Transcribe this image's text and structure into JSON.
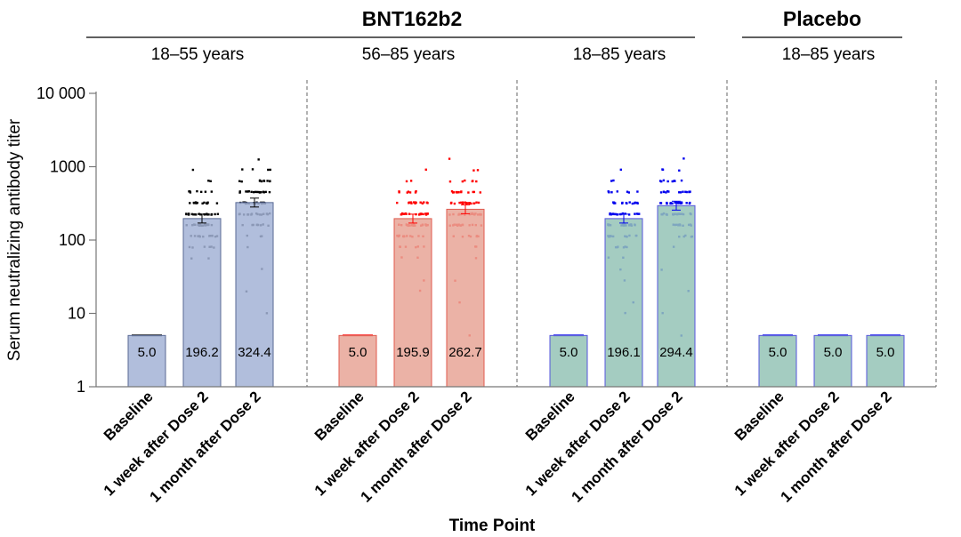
{
  "chart_data": {
    "type": "bar",
    "y_scale": "log",
    "ylim": [
      1,
      10000
    ],
    "yticks": [
      1,
      10,
      100,
      1000,
      10000
    ],
    "ytick_labels": [
      "1",
      "10",
      "100",
      "1000",
      "10 000"
    ],
    "ylabel": "Serum neutralizing antibody titer",
    "xlabel": "Time Point",
    "grid": false,
    "categories": [
      "Baseline",
      "1 week after Dose 2",
      "1 month after Dose 2"
    ],
    "groups": [
      {
        "title": "BNT162b2",
        "panel_count": 3
      },
      {
        "title": "Placebo",
        "panel_count": 1
      }
    ],
    "panels": [
      {
        "label": "18–55 years",
        "group": "BNT162b2",
        "bar_fill": "#a3b3d6",
        "bar_stroke": "#5a6a95",
        "point_color": "#000000",
        "values": [
          5.0,
          196.2,
          324.4
        ],
        "value_labels": [
          "5.0",
          "196.2",
          "324.4"
        ]
      },
      {
        "label": "56–85 years",
        "group": "BNT162b2",
        "bar_fill": "#e8a497",
        "bar_stroke": "#e05a4e",
        "point_color": "#ff0000",
        "values": [
          5.0,
          195.9,
          262.7
        ],
        "value_labels": [
          "5.0",
          "195.9",
          "262.7"
        ]
      },
      {
        "label": "18–85 years",
        "group": "BNT162b2",
        "bar_fill": "#94c3b6",
        "bar_stroke": "#5555dd",
        "point_color": "#0000ee",
        "values": [
          5.0,
          196.1,
          294.4
        ],
        "value_labels": [
          "5.0",
          "196.1",
          "294.4"
        ]
      },
      {
        "label": "18–85 years",
        "group": "Placebo",
        "bar_fill": "#94c3b6",
        "bar_stroke": "#5555dd",
        "point_color": "#0000ee",
        "values": [
          5.0,
          5.0,
          5.0
        ],
        "value_labels": [
          "5.0",
          "5.0",
          "5.0"
        ]
      }
    ]
  }
}
